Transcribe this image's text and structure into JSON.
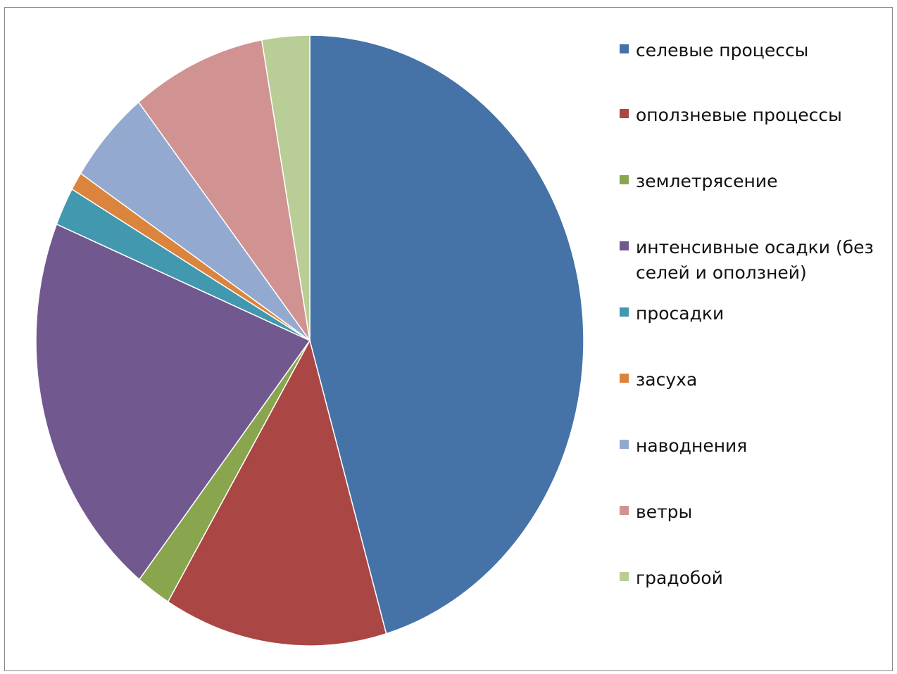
{
  "chart_data": {
    "type": "pie",
    "title": "",
    "legend_position": "right",
    "start_angle_deg": 0,
    "direction": "clockwise",
    "series": [
      {
        "labels": [
          "селевые процессы",
          "оползневые процессы",
          "землетрясение",
          "интенсивные осадки  (без селей и оползней)",
          "просадки",
          "засуха",
          "наводнения",
          "ветры",
          "градобой"
        ],
        "values": [
          47,
          13.6,
          2.1,
          21.2,
          2.1,
          1.0,
          5.2,
          8.2,
          2.9
        ],
        "colors": [
          "#4572A7",
          "#AA4643",
          "#89A54E",
          "#71588F",
          "#4198AF",
          "#DB843D",
          "#93A9CF",
          "#D19392",
          "#B9CD96"
        ]
      }
    ]
  }
}
